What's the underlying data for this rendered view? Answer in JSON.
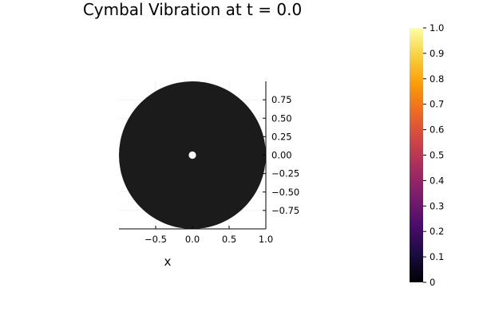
{
  "chart_data": {
    "type": "heatmap",
    "title": "Cymbal Vibration at t = 0.0",
    "xlabel": "x",
    "ylabel": "",
    "xlim": [
      -1.0,
      1.0
    ],
    "ylim": [
      -1.0,
      1.0
    ],
    "x_ticks": [
      {
        "value": -0.5,
        "label": "−0.5"
      },
      {
        "value": 0.0,
        "label": "0.0"
      },
      {
        "value": 0.5,
        "label": "0.5"
      },
      {
        "value": 1.0,
        "label": "1.0"
      }
    ],
    "y_ticks": [
      {
        "value": 0.75,
        "label": "0.75"
      },
      {
        "value": 0.5,
        "label": "0.50"
      },
      {
        "value": 0.25,
        "label": "0.25"
      },
      {
        "value": 0.0,
        "label": "0.00"
      },
      {
        "value": -0.25,
        "label": "−0.25"
      },
      {
        "value": -0.5,
        "label": "−0.50"
      },
      {
        "value": -0.75,
        "label": "−0.75"
      }
    ],
    "y_axis_side": "right",
    "grid": true,
    "surface": {
      "shape": "annulus",
      "outer_radius": 1.0,
      "inner_radius": 0.05,
      "value": 0.0
    },
    "colorbar": {
      "colormap": "inferno",
      "range": [
        0,
        1
      ],
      "ticks": [
        {
          "value": 0.0,
          "label": "0"
        },
        {
          "value": 0.1,
          "label": "0.1"
        },
        {
          "value": 0.2,
          "label": "0.2"
        },
        {
          "value": 0.3,
          "label": "0.3"
        },
        {
          "value": 0.4,
          "label": "0.4"
        },
        {
          "value": 0.5,
          "label": "0.5"
        },
        {
          "value": 0.6,
          "label": "0.6"
        },
        {
          "value": 0.7,
          "label": "0.7"
        },
        {
          "value": 0.8,
          "label": "0.8"
        },
        {
          "value": 0.9,
          "label": "0.9"
        },
        {
          "value": 1.0,
          "label": "1.0"
        }
      ],
      "stops": [
        "#000004",
        "#1b0c41",
        "#4a0c6b",
        "#781c6d",
        "#a52c60",
        "#cf4446",
        "#ed6925",
        "#fb9b06",
        "#f7d13d",
        "#fcffa4"
      ]
    },
    "colors": {
      "surface_fill": "#1b1b1b",
      "grid": "#e5e5e5",
      "axis": "#000000"
    }
  }
}
